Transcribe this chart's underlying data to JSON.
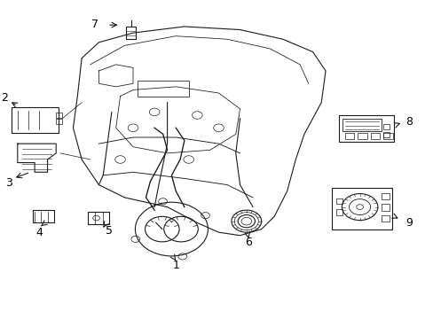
{
  "background_color": "#ffffff",
  "line_color": "#1a1a1a",
  "label_color": "#000000",
  "fig_width": 4.89,
  "fig_height": 3.6,
  "dpi": 100,
  "label_fontsize": 9,
  "circles": [
    [
      0.35,
      0.65,
      0.012
    ],
    [
      0.45,
      0.64,
      0.012
    ],
    [
      0.3,
      0.6,
      0.012
    ],
    [
      0.5,
      0.6,
      0.012
    ],
    [
      0.27,
      0.5,
      0.012
    ],
    [
      0.43,
      0.5,
      0.012
    ]
  ]
}
